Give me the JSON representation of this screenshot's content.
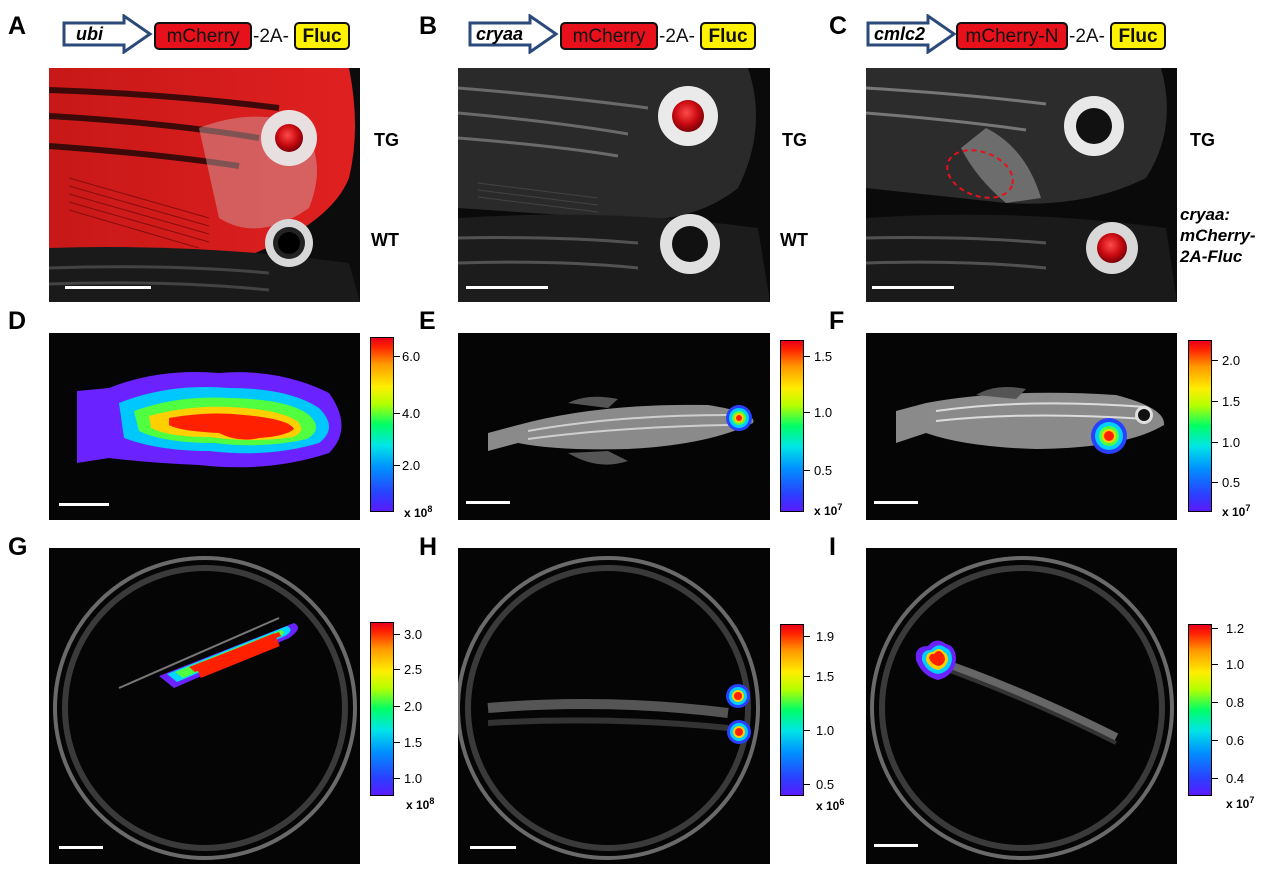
{
  "panels": {
    "A": "A",
    "B": "B",
    "C": "C",
    "D": "D",
    "E": "E",
    "F": "F",
    "G": "G",
    "H": "H",
    "I": "I"
  },
  "constructs": {
    "A": {
      "promoter": "ubi",
      "reporter": "mCherry",
      "linker": "-2A-",
      "luciferase": "Fluc"
    },
    "B": {
      "promoter": "cryaa",
      "reporter": "mCherry",
      "linker": "-2A-",
      "luciferase": "Fluc"
    },
    "C": {
      "promoter": "cmlc2",
      "reporter": "mCherry-N",
      "linker": "-2A-",
      "luciferase": "Fluc"
    }
  },
  "side_labels": {
    "A_top": "TG",
    "A_bottom": "WT",
    "B_top": "TG",
    "B_bottom": "WT",
    "C_top": "TG",
    "C_bottom_lines": [
      "cryaa:",
      "mCherry-",
      "2A-Fluc"
    ]
  },
  "colorbars": {
    "D": {
      "ticks": [
        "6.0",
        "4.0",
        "2.0"
      ],
      "unit_base": "x 10",
      "unit_exp": "8"
    },
    "E": {
      "ticks": [
        "1.5",
        "1.0",
        "0.5"
      ],
      "unit_base": "x 10",
      "unit_exp": "7"
    },
    "F": {
      "ticks": [
        "2.0",
        "1.5",
        "1.0",
        "0.5"
      ],
      "unit_base": "x 10",
      "unit_exp": "7"
    },
    "G": {
      "ticks": [
        "3.0",
        "2.5",
        "2.0",
        "1.5",
        "1.0"
      ],
      "unit_base": "x 10",
      "unit_exp": "8"
    },
    "H": {
      "ticks": [
        "1.9",
        "1.5",
        "1.0",
        "0.5"
      ],
      "unit_base": "x 10",
      "unit_exp": "6"
    },
    "I": {
      "ticks": [
        "1.2",
        "1.0",
        "0.8",
        "0.6",
        "0.4"
      ],
      "unit_base": "x 10",
      "unit_exp": "7"
    }
  },
  "colors": {
    "mcherry": "#e8101a",
    "fluc": "#fff200",
    "promoter_arrow": "#2b4a7a"
  }
}
